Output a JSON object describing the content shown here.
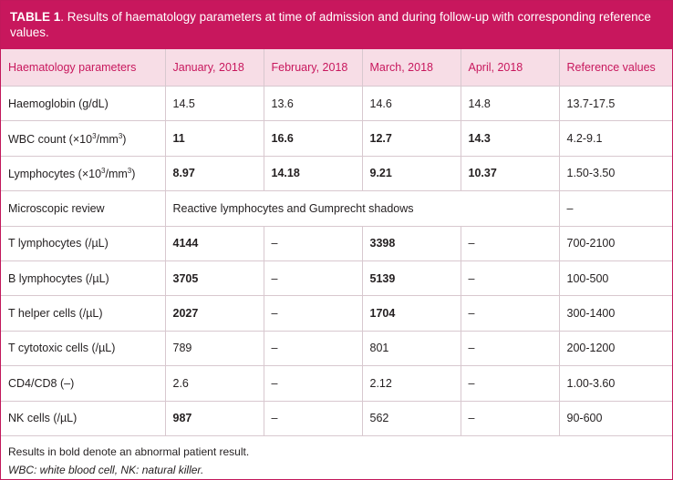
{
  "caption": {
    "label": "TABLE 1",
    "text": ". Results of haematology parameters at time of admission and during follow-up with corresponding reference values."
  },
  "table": {
    "headers": [
      "Haematology parameters",
      "January, 2018",
      "February, 2018",
      "March, 2018",
      "April, 2018",
      "Reference values"
    ],
    "rows": [
      {
        "param": "Haemoglobin (g/dL)",
        "jan": "14.5",
        "feb": "13.6",
        "mar": "14.6",
        "apr": "14.8",
        "ref": "13.7-17.5"
      },
      {
        "param": "WBC count (×10³/mm³)",
        "jan": "11",
        "feb": "16.6",
        "mar": "12.7",
        "apr": "14.3",
        "ref": "4.2-9.1"
      },
      {
        "param": "Lymphocytes (×10³/mm³)",
        "jan": "8.97",
        "feb": "14.18",
        "mar": "9.21",
        "apr": "10.37",
        "ref": "1.50-3.50"
      },
      {
        "param": "Microscopic review",
        "merged": "Reactive lymphocytes and Gumprecht shadows",
        "ref": "–"
      },
      {
        "param": "T lymphocytes (/µL)",
        "jan": "4144",
        "feb": "–",
        "mar": "3398",
        "apr": "–",
        "ref": "700-2100"
      },
      {
        "param": "B lymphocytes (/µL)",
        "jan": "3705",
        "feb": "–",
        "mar": "5139",
        "apr": "–",
        "ref": "100-500"
      },
      {
        "param": "T helper cells (/µL)",
        "jan": "2027",
        "feb": "–",
        "mar": "1704",
        "apr": "–",
        "ref": "300-1400"
      },
      {
        "param": "T cytotoxic cells (/µL)",
        "jan": "789",
        "feb": "–",
        "mar": "801",
        "apr": "–",
        "ref": "200-1200"
      },
      {
        "param": "CD4/CD8 (–)",
        "jan": "2.6",
        "feb": "–",
        "mar": "2.12",
        "apr": "–",
        "ref": "1.00-3.60"
      },
      {
        "param": "NK cells (/µL)",
        "jan": "987",
        "feb": "–",
        "mar": "562",
        "apr": "–",
        "ref": "90-600"
      }
    ]
  },
  "notes": {
    "bold_note": "Results in bold denote an abnormal patient result.",
    "abbreviations": "WBC: white blood cell, NK: natural killer."
  },
  "colors": {
    "accent": "#c8175d",
    "header_fill": "#f7dde6"
  }
}
